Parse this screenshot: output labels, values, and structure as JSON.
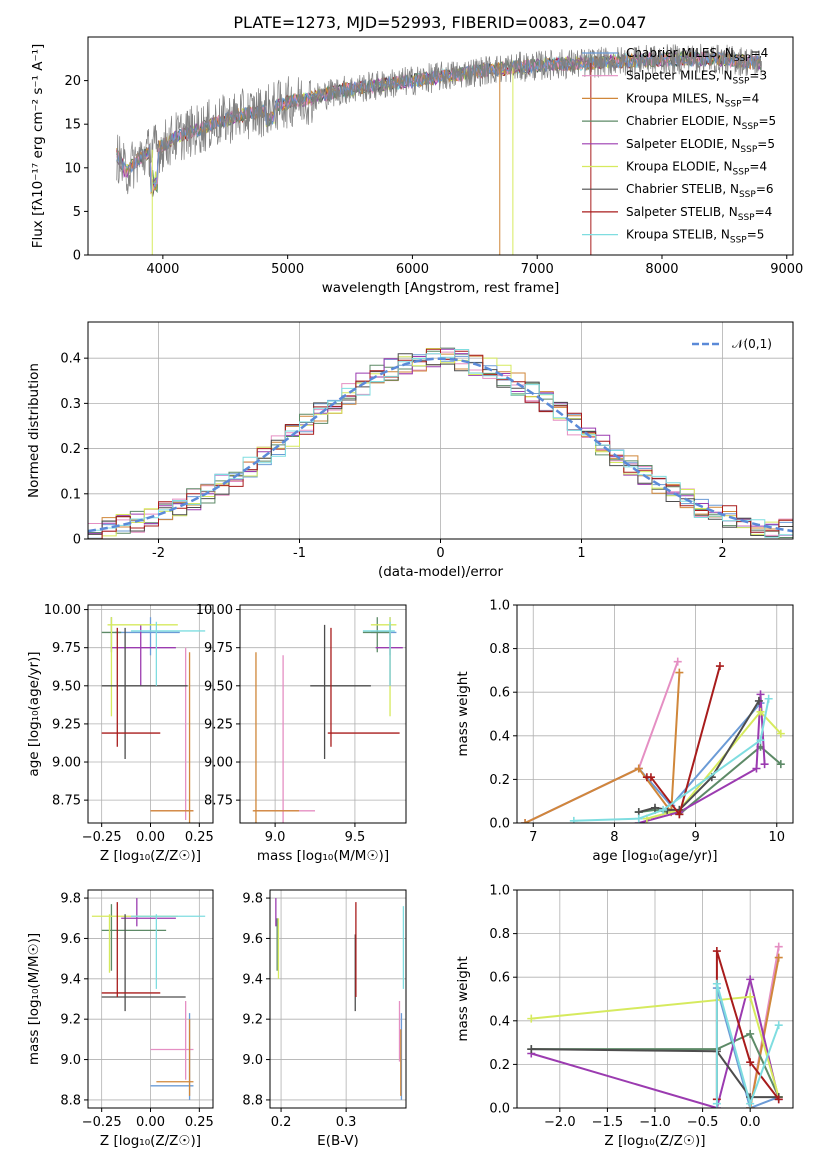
{
  "figure_title": "PLATE=1273, MJD=52993, FIBERID=0083, z=0.047",
  "legend": [
    {
      "name": "Chabrier MILES, N",
      "sub": "SSP",
      "tail": "=4",
      "color": "#6b9bd6"
    },
    {
      "name": "Salpeter MILES, N",
      "sub": "SSP",
      "tail": "=3",
      "color": "#e58fc3"
    },
    {
      "name": "Kroupa MILES, N",
      "sub": "SSP",
      "tail": "=4",
      "color": "#d0873a"
    },
    {
      "name": "Chabrier ELODIE, N",
      "sub": "SSP",
      "tail": "=5",
      "color": "#5d8a67"
    },
    {
      "name": "Salpeter ELODIE, N",
      "sub": "SSP",
      "tail": "=5",
      "color": "#9b3bb0"
    },
    {
      "name": "Kroupa ELODIE, N",
      "sub": "SSP",
      "tail": "=4",
      "color": "#d6ea5e"
    },
    {
      "name": "Chabrier STELIB, N",
      "sub": "SSP",
      "tail": "=6",
      "color": "#4d4d4d"
    },
    {
      "name": "Salpeter STELIB, N",
      "sub": "SSP",
      "tail": "=4",
      "color": "#a81c1c"
    },
    {
      "name": "Kroupa STELIB, N",
      "sub": "SSP",
      "tail": "=5",
      "color": "#7fdde0"
    }
  ],
  "chart_data": [
    {
      "type": "line",
      "id": "spectrum",
      "xlabel": "wavelength [Angstrom, rest frame]",
      "ylabel": "Flux [fλ10⁻¹⁷ erg cm⁻² s⁻¹ A⁻¹]",
      "xlim": [
        3400,
        9050
      ],
      "ylim": [
        0,
        25
      ],
      "xticks": [
        4000,
        5000,
        6000,
        7000,
        8000,
        9000
      ],
      "yticks": [
        0,
        5,
        10,
        15,
        20
      ],
      "grid": false,
      "data_color": "#808080",
      "data_knots": [
        [
          3630,
          11.5
        ],
        [
          3700,
          9.5
        ],
        [
          3800,
          11
        ],
        [
          3900,
          12
        ],
        [
          4000,
          12.5
        ],
        [
          4100,
          13.5
        ],
        [
          4200,
          14
        ],
        [
          4400,
          15
        ],
        [
          4600,
          16
        ],
        [
          4800,
          16.5
        ],
        [
          5000,
          17.5
        ],
        [
          5200,
          18
        ],
        [
          5400,
          18.8
        ],
        [
          5600,
          19.2
        ],
        [
          5800,
          19.6
        ],
        [
          6000,
          20
        ],
        [
          6200,
          20.4
        ],
        [
          6400,
          20.8
        ],
        [
          6600,
          21.2
        ],
        [
          6800,
          21.5
        ],
        [
          7000,
          21.7
        ],
        [
          7200,
          21.9
        ],
        [
          7400,
          22
        ],
        [
          7600,
          22.2
        ],
        [
          7800,
          22.3
        ],
        [
          8000,
          22.4
        ],
        [
          8200,
          22.5
        ],
        [
          8400,
          22.5
        ],
        [
          8600,
          22.3
        ],
        [
          8800,
          22
        ]
      ],
      "legend_position": "top-right"
    },
    {
      "type": "step",
      "id": "residuals",
      "xlabel": "(data-model)/error",
      "ylabel": "Normed distribution",
      "xlim": [
        -2.5,
        2.5
      ],
      "ylim": [
        0,
        0.48
      ],
      "xticks": [
        -2,
        -1,
        0,
        1,
        2
      ],
      "yticks": [
        0.0,
        0.1,
        0.2,
        0.3,
        0.4
      ],
      "grid": true,
      "reference_curve": {
        "label": "𝒩(0,1)",
        "mu": 0,
        "sigma": 1,
        "color": "#5b8ad8"
      },
      "bin_width": 0.1,
      "legend_position": "top-right"
    },
    {
      "type": "errorbar",
      "id": "age_vs_Z",
      "xlabel": "Z [log₁₀(Z/Z☉)]",
      "ylabel": "age  [log₁₀(age/yr)]",
      "xlim": [
        -0.32,
        0.32
      ],
      "ylim": [
        8.6,
        10.03
      ],
      "xticks": [
        -0.25,
        0.0,
        0.25
      ],
      "yticks": [
        8.75,
        9.0,
        9.25,
        9.5,
        9.75,
        10.0
      ],
      "xtick_labels": [
        "−0.25",
        "0.00",
        "0.25"
      ],
      "ytick_labels": [
        "8.75",
        "9.00",
        "9.25",
        "9.50",
        "9.75",
        "10.00"
      ],
      "grid": true,
      "points": [
        {
          "color": "#6b9bd6",
          "x": 0.0,
          "x_lo": -0.18,
          "x_hi": 0.15,
          "y": 9.85,
          "y_lo": 9.7,
          "y_hi": 9.95
        },
        {
          "color": "#e58fc3",
          "x": 0.18,
          "x_lo": 0.0,
          "x_hi": 0.22,
          "y": 8.68,
          "y_lo": 8.62,
          "y_hi": 9.75
        },
        {
          "color": "#d0873a",
          "x": 0.2,
          "x_lo": 0.0,
          "x_hi": 0.22,
          "y": 8.68,
          "y_lo": 8.6,
          "y_hi": 9.72
        },
        {
          "color": "#5d8a67",
          "x": -0.2,
          "x_lo": -0.25,
          "x_hi": -0.15,
          "y": 9.85,
          "y_lo": 9.72,
          "y_hi": 9.95
        },
        {
          "color": "#9b3bb0",
          "x": -0.05,
          "x_lo": -0.2,
          "x_hi": 0.13,
          "y": 9.75,
          "y_lo": 9.5,
          "y_hi": 9.9
        },
        {
          "color": "#d6ea5e",
          "x": -0.2,
          "x_lo": -0.22,
          "x_hi": 0.14,
          "y": 9.9,
          "y_lo": 9.3,
          "y_hi": 9.95
        },
        {
          "color": "#4d4d4d",
          "x": -0.13,
          "x_lo": -0.25,
          "x_hi": 0.19,
          "y": 9.5,
          "y_lo": 9.02,
          "y_hi": 9.88
        },
        {
          "color": "#a81c1c",
          "x": -0.17,
          "x_lo": -0.25,
          "x_hi": 0.05,
          "y": 9.19,
          "y_lo": 9.1,
          "y_hi": 9.88
        },
        {
          "color": "#7fdde0",
          "x": 0.03,
          "x_lo": -0.1,
          "x_hi": 0.28,
          "y": 9.86,
          "y_lo": 9.5,
          "y_hi": 9.92
        }
      ]
    },
    {
      "type": "errorbar",
      "id": "age_vs_mass",
      "xlabel": "mass [log₁₀(M/M☉)]",
      "ylabel": "",
      "xlim": [
        8.78,
        9.82
      ],
      "ylim": [
        8.6,
        10.03
      ],
      "xticks": [
        9.0,
        9.5
      ],
      "yticks": [
        8.75,
        9.0,
        9.25,
        9.5,
        9.75,
        10.0
      ],
      "xtick_labels": [
        "9.0",
        "9.5"
      ],
      "ytick_labels": [
        "8.75",
        "9.00",
        "9.25",
        "9.50",
        "9.75",
        "10.00"
      ],
      "grid": true,
      "points": [
        {
          "color": "#6b9bd6",
          "x": 9.72,
          "x_lo": 9.6,
          "x_hi": 9.76,
          "y": 9.85,
          "y_lo": 9.7,
          "y_hi": 9.95
        },
        {
          "color": "#e58fc3",
          "x": 9.05,
          "x_lo": 8.87,
          "x_hi": 9.25,
          "y": 8.68,
          "y_lo": 8.6,
          "y_hi": 9.7
        },
        {
          "color": "#d0873a",
          "x": 8.88,
          "x_lo": 8.86,
          "x_hi": 9.15,
          "y": 8.68,
          "y_lo": 8.6,
          "y_hi": 9.72
        },
        {
          "color": "#5d8a67",
          "x": 9.64,
          "x_lo": 9.55,
          "x_hi": 9.72,
          "y": 9.85,
          "y_lo": 9.72,
          "y_hi": 9.95
        },
        {
          "color": "#9b3bb0",
          "x": 9.72,
          "x_lo": 9.63,
          "x_hi": 9.8,
          "y": 9.75,
          "y_lo": 9.5,
          "y_hi": 9.9
        },
        {
          "color": "#d6ea5e",
          "x": 9.72,
          "x_lo": 9.6,
          "x_hi": 9.76,
          "y": 9.9,
          "y_lo": 9.3,
          "y_hi": 9.95
        },
        {
          "color": "#4d4d4d",
          "x": 9.31,
          "x_lo": 9.22,
          "x_hi": 9.6,
          "y": 9.5,
          "y_lo": 9.02,
          "y_hi": 9.9
        },
        {
          "color": "#a81c1c",
          "x": 9.35,
          "x_lo": 9.33,
          "x_hi": 9.78,
          "y": 9.19,
          "y_lo": 9.1,
          "y_hi": 9.88
        },
        {
          "color": "#7fdde0",
          "x": 9.72,
          "x_lo": 9.55,
          "x_hi": 9.75,
          "y": 9.86,
          "y_lo": 9.5,
          "y_hi": 9.92
        }
      ]
    },
    {
      "type": "line",
      "id": "weight_vs_age",
      "xlabel": "age  [log₁₀(age/yr)]",
      "ylabel": "mass weight",
      "xlim": [
        6.8,
        10.2
      ],
      "ylim": [
        0,
        1
      ],
      "xticks": [
        7,
        8,
        9,
        10
      ],
      "yticks": [
        0.0,
        0.2,
        0.4,
        0.6,
        0.8,
        1.0
      ],
      "xtick_labels": [
        "7",
        "8",
        "9",
        "10"
      ],
      "ytick_labels": [
        "0.0",
        "0.2",
        "0.4",
        "0.6",
        "0.8",
        "1.0"
      ],
      "grid": true,
      "series": [
        {
          "color": "#6b9bd6",
          "x": [
            6.9,
            8.3,
            8.7,
            9.8
          ],
          "y": [
            0.0,
            0.25,
            0.08,
            0.55
          ]
        },
        {
          "color": "#e58fc3",
          "x": [
            6.9,
            8.3,
            8.78
          ],
          "y": [
            0.0,
            0.25,
            0.74
          ]
        },
        {
          "color": "#d0873a",
          "x": [
            6.9,
            8.3,
            8.7,
            8.8
          ],
          "y": [
            0.0,
            0.25,
            0.05,
            0.69
          ]
        },
        {
          "color": "#5d8a67",
          "x": [
            8.3,
            8.5,
            8.8,
            9.8,
            10.05
          ],
          "y": [
            0.05,
            0.06,
            0.04,
            0.35,
            0.27
          ]
        },
        {
          "color": "#9b3bb0",
          "x": [
            8.3,
            8.8,
            9.75,
            9.8,
            9.85
          ],
          "y": [
            0.0,
            0.05,
            0.25,
            0.59,
            0.27
          ]
        },
        {
          "color": "#d6ea5e",
          "x": [
            8.4,
            8.8,
            9.8,
            10.05
          ],
          "y": [
            0.02,
            0.06,
            0.51,
            0.41
          ]
        },
        {
          "color": "#4d4d4d",
          "x": [
            8.3,
            8.5,
            8.65,
            8.8,
            9.2,
            9.78
          ],
          "y": [
            0.05,
            0.07,
            0.06,
            0.06,
            0.21,
            0.56
          ]
        },
        {
          "color": "#a81c1c",
          "x": [
            8.4,
            8.45,
            8.8,
            9.3
          ],
          "y": [
            0.21,
            0.21,
            0.04,
            0.72
          ]
        },
        {
          "color": "#7fdde0",
          "x": [
            7.5,
            8.3,
            8.6,
            9.8,
            9.9
          ],
          "y": [
            0.01,
            0.02,
            0.06,
            0.38,
            0.57
          ]
        }
      ]
    },
    {
      "type": "errorbar",
      "id": "mass_vs_Z",
      "xlabel": "Z [log₁₀(Z/Z☉)]",
      "ylabel": "mass [log₁₀(M/M☉)]",
      "xlim": [
        -0.32,
        0.32
      ],
      "ylim": [
        8.76,
        9.84
      ],
      "xticks": [
        -0.25,
        0.0,
        0.25
      ],
      "yticks": [
        8.8,
        9.0,
        9.2,
        9.4,
        9.6,
        9.8
      ],
      "xtick_labels": [
        "−0.25",
        "0.00",
        "0.25"
      ],
      "ytick_labels": [
        "8.8",
        "9.0",
        "9.2",
        "9.4",
        "9.6",
        "9.8"
      ],
      "grid": true,
      "points": [
        {
          "color": "#6b9bd6",
          "x": 0.2,
          "x_lo": 0.0,
          "x_hi": 0.22,
          "y": 8.87,
          "y_lo": 8.8,
          "y_hi": 9.23
        },
        {
          "color": "#e58fc3",
          "x": 0.18,
          "x_lo": 0.0,
          "x_hi": 0.22,
          "y": 9.05,
          "y_lo": 8.9,
          "y_hi": 9.29
        },
        {
          "color": "#d0873a",
          "x": 0.2,
          "x_lo": 0.03,
          "x_hi": 0.22,
          "y": 8.89,
          "y_lo": 8.82,
          "y_hi": 9.2
        },
        {
          "color": "#5d8a67",
          "x": -0.2,
          "x_lo": -0.25,
          "x_hi": 0.08,
          "y": 9.64,
          "y_lo": 9.44,
          "y_hi": 9.77
        },
        {
          "color": "#9b3bb0",
          "x": -0.07,
          "x_lo": -0.15,
          "x_hi": 0.13,
          "y": 9.7,
          "y_lo": 9.66,
          "y_hi": 9.8
        },
        {
          "color": "#d6ea5e",
          "x": -0.21,
          "x_lo": -0.3,
          "x_hi": 0.14,
          "y": 9.71,
          "y_lo": 9.43,
          "y_hi": 9.72
        },
        {
          "color": "#4d4d4d",
          "x": -0.13,
          "x_lo": -0.25,
          "x_hi": 0.18,
          "y": 9.31,
          "y_lo": 9.24,
          "y_hi": 9.72
        },
        {
          "color": "#a81c1c",
          "x": -0.17,
          "x_lo": -0.25,
          "x_hi": 0.05,
          "y": 9.33,
          "y_lo": 9.31,
          "y_hi": 9.78
        },
        {
          "color": "#7fdde0",
          "x": 0.03,
          "x_lo": -0.1,
          "x_hi": 0.28,
          "y": 9.71,
          "y_lo": 9.35,
          "y_hi": 9.72
        }
      ]
    },
    {
      "type": "errorbar",
      "id": "mass_vs_ebv",
      "xlabel": "E(B-V)",
      "ylabel": "",
      "xlim": [
        0.183,
        0.392
      ],
      "ylim": [
        8.76,
        9.84
      ],
      "xticks": [
        0.2,
        0.3
      ],
      "yticks": [
        8.8,
        9.0,
        9.2,
        9.4,
        9.6,
        9.8
      ],
      "xtick_labels": [
        "0.2",
        "0.3"
      ],
      "ytick_labels": [
        "8.8",
        "9.0",
        "9.2",
        "9.4",
        "9.6",
        "9.8"
      ],
      "grid": true,
      "points": [
        {
          "color": "#6b9bd6",
          "x": 0.385,
          "y": 8.87,
          "y_lo": 8.8,
          "y_hi": 9.23
        },
        {
          "color": "#e58fc3",
          "x": 0.382,
          "y": 9.05,
          "y_lo": 8.99,
          "y_hi": 9.29
        },
        {
          "color": "#d0873a",
          "x": 0.384,
          "y": 8.89,
          "y_lo": 8.82,
          "y_hi": 9.15
        },
        {
          "color": "#5d8a67",
          "x": 0.194,
          "y": 9.64,
          "y_lo": 9.44,
          "y_hi": 9.7
        },
        {
          "color": "#9b3bb0",
          "x": 0.192,
          "y": 9.7,
          "y_lo": 9.66,
          "y_hi": 9.8
        },
        {
          "color": "#d6ea5e",
          "x": 0.196,
          "y": 9.6,
          "y_lo": 9.4,
          "y_hi": 9.7
        },
        {
          "color": "#4d4d4d",
          "x": 0.314,
          "y": 9.3,
          "y_lo": 9.24,
          "y_hi": 9.62
        },
        {
          "color": "#a81c1c",
          "x": 0.315,
          "y": 9.35,
          "y_lo": 9.31,
          "y_hi": 9.78
        },
        {
          "color": "#7fdde0",
          "x": 0.388,
          "y": 9.55,
          "y_lo": 9.35,
          "y_hi": 9.76
        }
      ]
    },
    {
      "type": "line",
      "id": "weight_vs_Z",
      "xlabel": "Z [log₁₀(Z/Z☉)]",
      "ylabel": "mass weight",
      "xlim": [
        -2.45,
        0.45
      ],
      "ylim": [
        0,
        1
      ],
      "xticks": [
        -2.0,
        -1.5,
        -1.0,
        -0.5,
        0.0
      ],
      "yticks": [
        0.0,
        0.2,
        0.4,
        0.6,
        0.8,
        1.0
      ],
      "xtick_labels": [
        "−2.0",
        "−1.5",
        "−1.0",
        "−0.5",
        "0.0"
      ],
      "ytick_labels": [
        "0.0",
        "0.2",
        "0.4",
        "0.6",
        "0.8",
        "1.0"
      ],
      "grid": true,
      "series": [
        {
          "color": "#6b9bd6",
          "x": [
            -0.35,
            0.0,
            0.3
          ],
          "y": [
            0.55,
            0.0,
            0.05
          ]
        },
        {
          "color": "#e58fc3",
          "x": [
            0.0,
            0.3
          ],
          "y": [
            0.0,
            0.74
          ]
        },
        {
          "color": "#d0873a",
          "x": [
            0.0,
            0.3
          ],
          "y": [
            0.0,
            0.69
          ]
        },
        {
          "color": "#5d8a67",
          "x": [
            -2.3,
            -0.35,
            0.0,
            0.3
          ],
          "y": [
            0.27,
            0.27,
            0.34,
            0.05
          ]
        },
        {
          "color": "#9b3bb0",
          "x": [
            -2.3,
            -0.35,
            0.0,
            0.3
          ],
          "y": [
            0.25,
            0.0,
            0.59,
            0.04
          ]
        },
        {
          "color": "#d6ea5e",
          "x": [
            -2.3,
            0.0,
            0.3
          ],
          "y": [
            0.41,
            0.51,
            0.05
          ]
        },
        {
          "color": "#4d4d4d",
          "x": [
            -2.3,
            -0.35,
            0.0,
            0.3
          ],
          "y": [
            0.27,
            0.26,
            0.05,
            0.05
          ]
        },
        {
          "color": "#a81c1c",
          "x": [
            -0.35,
            -0.35,
            0.0,
            0.3
          ],
          "y": [
            0.04,
            0.72,
            0.21,
            0.04
          ]
        },
        {
          "color": "#7fdde0",
          "x": [
            -0.35,
            -0.35,
            0.0,
            0.3
          ],
          "y": [
            0.02,
            0.57,
            0.02,
            0.38
          ]
        }
      ]
    }
  ]
}
